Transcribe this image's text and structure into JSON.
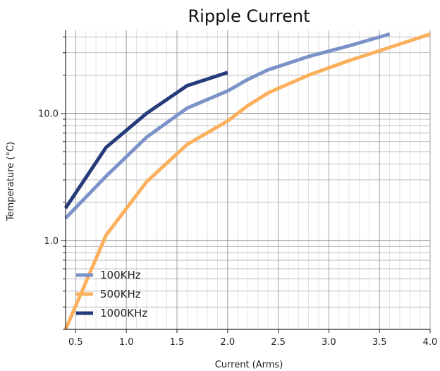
{
  "chart_data": {
    "type": "line",
    "title": "Ripple Current",
    "xlabel": "Current (Arms)",
    "ylabel": "Temperature (°C)",
    "xlim": [
      0.4,
      4.0
    ],
    "ylim": [
      0.2,
      45
    ],
    "yscale": "log",
    "grid": true,
    "legend_position": "bottom-left",
    "x_ticks": [
      {
        "value": 0.5,
        "label": "0.5"
      },
      {
        "value": 1.0,
        "label": "1.0"
      },
      {
        "value": 1.5,
        "label": "1.5"
      },
      {
        "value": 2.0,
        "label": "2.0"
      },
      {
        "value": 2.5,
        "label": "2.5"
      },
      {
        "value": 3.0,
        "label": "3.0"
      },
      {
        "value": 3.5,
        "label": "3.5"
      },
      {
        "value": 4.0,
        "label": "4.0"
      }
    ],
    "y_ticks": [
      {
        "value": 1.0,
        "label": "1.0"
      },
      {
        "value": 10.0,
        "label": "10.0"
      }
    ],
    "series": [
      {
        "name": "100KHz",
        "color": "#7b93c8",
        "points": [
          [
            0.4,
            1.5
          ],
          [
            0.8,
            3.2
          ],
          [
            1.2,
            6.5
          ],
          [
            1.6,
            11
          ],
          [
            2.0,
            15
          ],
          [
            2.2,
            18.5
          ],
          [
            2.4,
            22
          ],
          [
            2.8,
            28
          ],
          [
            3.2,
            34
          ],
          [
            3.6,
            42
          ]
        ]
      },
      {
        "name": "500KHz",
        "color": "#fbb05e",
        "points": [
          [
            0.4,
            0.2
          ],
          [
            0.8,
            1.1
          ],
          [
            1.2,
            2.9
          ],
          [
            1.6,
            5.7
          ],
          [
            2.0,
            8.7
          ],
          [
            2.2,
            11.5
          ],
          [
            2.4,
            14.5
          ],
          [
            2.8,
            20
          ],
          [
            3.2,
            26
          ],
          [
            3.6,
            33
          ],
          [
            4.0,
            42
          ]
        ]
      },
      {
        "name": "1000KHz",
        "color": "#253b7a",
        "points": [
          [
            0.4,
            1.8
          ],
          [
            0.8,
            5.4
          ],
          [
            1.2,
            10
          ],
          [
            1.6,
            16.5
          ],
          [
            2.0,
            21
          ]
        ]
      }
    ]
  }
}
